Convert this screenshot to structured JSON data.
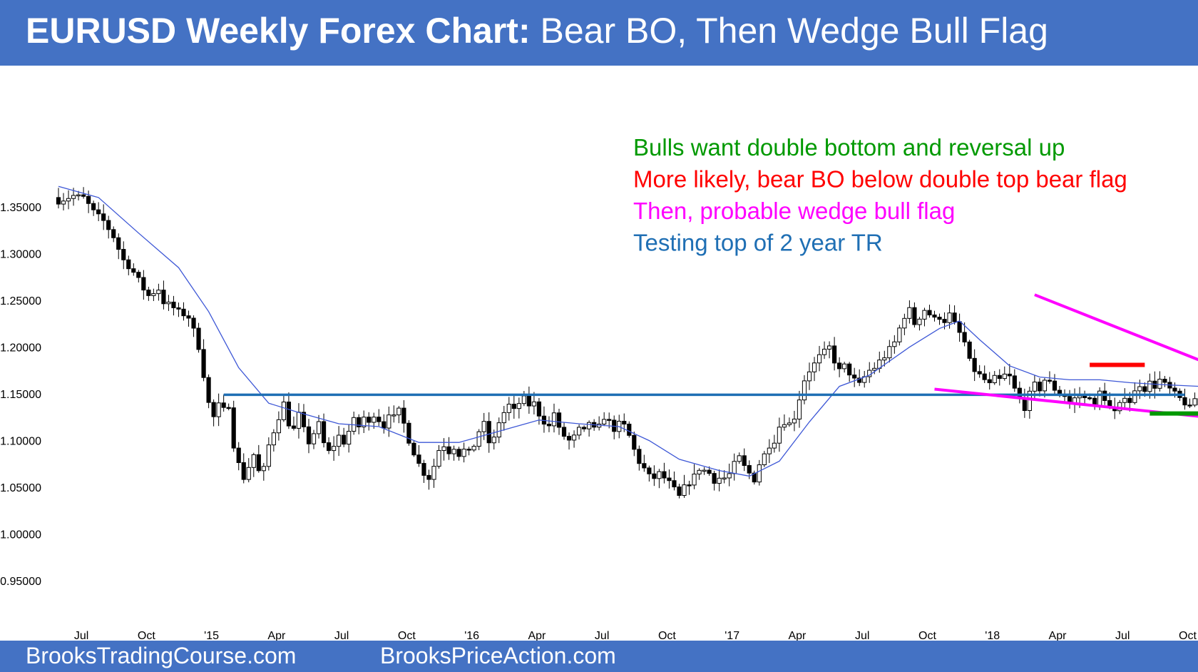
{
  "header": {
    "title_bold": "EURUSD Weekly Forex Chart:",
    "title_rest": " Bear BO, Then Wedge Bull Flag"
  },
  "footer": {
    "left_link": "BrooksTradingCourse.com",
    "right_link": "BrooksPriceAction.com"
  },
  "colors": {
    "banner": "#4472c4",
    "candle": "#000000",
    "moving_average": "#3d57d6",
    "range_line": "#1f6fb4",
    "wedge": "#ff00ff",
    "double_top": "#ff0000",
    "double_bottom": "#009900"
  },
  "chart_data": {
    "type": "candlestick",
    "timeframe": "weekly",
    "ylim": [
      0.93,
      1.43
    ],
    "y_ticks": [
      "1.35000",
      "1.30000",
      "1.25000",
      "1.20000",
      "1.15000",
      "1.10000",
      "1.05000",
      "1.00000",
      "0.95000"
    ],
    "y_tick_values": [
      1.35,
      1.3,
      1.25,
      1.2,
      1.15,
      1.1,
      1.05,
      1.0,
      0.95
    ],
    "x_ticks": [
      "Jul",
      "Oct",
      "'15",
      "Apr",
      "Jul",
      "Oct",
      "'16",
      "Apr",
      "Jul",
      "Oct",
      "'17",
      "Apr",
      "Jul",
      "Oct",
      "'18",
      "Apr",
      "Jul",
      "Oct"
    ],
    "x_tick_weeks": [
      4,
      17,
      30,
      43,
      56,
      69,
      82,
      95,
      108,
      121,
      134,
      147,
      160,
      173,
      186,
      199,
      212,
      225
    ],
    "close_path": [
      [
        0,
        1.356
      ],
      [
        3,
        1.362
      ],
      [
        5,
        1.36
      ],
      [
        7,
        1.345
      ],
      [
        9,
        1.335
      ],
      [
        11,
        1.318
      ],
      [
        12,
        1.305
      ],
      [
        13,
        1.293
      ],
      [
        15,
        1.28
      ],
      [
        16,
        1.272
      ],
      [
        17,
        1.262
      ],
      [
        18,
        1.255
      ],
      [
        20,
        1.262
      ],
      [
        21,
        1.248
      ],
      [
        22,
        1.246
      ],
      [
        24,
        1.238
      ],
      [
        26,
        1.232
      ],
      [
        27,
        1.218
      ],
      [
        28,
        1.2
      ],
      [
        29,
        1.17
      ],
      [
        30,
        1.14
      ],
      [
        31,
        1.125
      ],
      [
        32,
        1.138
      ],
      [
        33,
        1.133
      ],
      [
        34,
        1.138
      ],
      [
        35,
        1.095
      ],
      [
        36,
        1.075
      ],
      [
        37,
        1.06
      ],
      [
        38,
        1.072
      ],
      [
        39,
        1.085
      ],
      [
        40,
        1.067
      ],
      [
        41,
        1.07
      ],
      [
        42,
        1.095
      ],
      [
        43,
        1.11
      ],
      [
        44,
        1.125
      ],
      [
        45,
        1.14
      ],
      [
        46,
        1.118
      ],
      [
        47,
        1.112
      ],
      [
        48,
        1.128
      ],
      [
        49,
        1.112
      ],
      [
        50,
        1.098
      ],
      [
        51,
        1.108
      ],
      [
        52,
        1.118
      ],
      [
        53,
        1.097
      ],
      [
        54,
        1.088
      ],
      [
        55,
        1.095
      ],
      [
        56,
        1.105
      ],
      [
        57,
        1.098
      ],
      [
        58,
        1.11
      ],
      [
        59,
        1.122
      ],
      [
        60,
        1.115
      ],
      [
        61,
        1.125
      ],
      [
        62,
        1.118
      ],
      [
        63,
        1.128
      ],
      [
        64,
        1.122
      ],
      [
        65,
        1.115
      ],
      [
        66,
        1.13
      ],
      [
        67,
        1.125
      ],
      [
        68,
        1.132
      ],
      [
        69,
        1.118
      ],
      [
        70,
        1.1
      ],
      [
        71,
        1.087
      ],
      [
        72,
        1.075
      ],
      [
        73,
        1.065
      ],
      [
        74,
        1.06
      ],
      [
        75,
        1.073
      ],
      [
        76,
        1.09
      ],
      [
        77,
        1.095
      ],
      [
        78,
        1.088
      ],
      [
        79,
        1.093
      ],
      [
        80,
        1.085
      ],
      [
        81,
        1.09
      ],
      [
        82,
        1.087
      ],
      [
        83,
        1.095
      ],
      [
        84,
        1.11
      ],
      [
        85,
        1.118
      ],
      [
        86,
        1.098
      ],
      [
        87,
        1.102
      ],
      [
        88,
        1.12
      ],
      [
        89,
        1.13
      ],
      [
        90,
        1.138
      ],
      [
        91,
        1.132
      ],
      [
        92,
        1.14
      ],
      [
        93,
        1.145
      ],
      [
        94,
        1.138
      ],
      [
        95,
        1.14
      ],
      [
        96,
        1.128
      ],
      [
        97,
        1.12
      ],
      [
        98,
        1.115
      ],
      [
        99,
        1.13
      ],
      [
        100,
        1.112
      ],
      [
        101,
        1.105
      ],
      [
        102,
        1.1
      ],
      [
        103,
        1.104
      ],
      [
        104,
        1.112
      ],
      [
        105,
        1.11
      ],
      [
        106,
        1.12
      ],
      [
        107,
        1.112
      ],
      [
        108,
        1.115
      ],
      [
        109,
        1.125
      ],
      [
        110,
        1.12
      ],
      [
        111,
        1.112
      ],
      [
        112,
        1.118
      ],
      [
        113,
        1.116
      ],
      [
        114,
        1.105
      ],
      [
        115,
        1.09
      ],
      [
        116,
        1.077
      ],
      [
        117,
        1.07
      ],
      [
        118,
        1.062
      ],
      [
        119,
        1.06
      ],
      [
        120,
        1.065
      ],
      [
        121,
        1.06
      ],
      [
        122,
        1.055
      ],
      [
        123,
        1.048
      ],
      [
        124,
        1.04
      ],
      [
        125,
        1.05
      ],
      [
        126,
        1.055
      ],
      [
        127,
        1.062
      ],
      [
        128,
        1.07
      ],
      [
        129,
        1.068
      ],
      [
        130,
        1.065
      ],
      [
        131,
        1.057
      ],
      [
        132,
        1.06
      ],
      [
        133,
        1.06
      ],
      [
        134,
        1.064
      ],
      [
        135,
        1.075
      ],
      [
        136,
        1.082
      ],
      [
        137,
        1.072
      ],
      [
        138,
        1.065
      ],
      [
        139,
        1.058
      ],
      [
        140,
        1.075
      ],
      [
        141,
        1.085
      ],
      [
        142,
        1.095
      ],
      [
        143,
        1.1
      ],
      [
        144,
        1.115
      ],
      [
        145,
        1.12
      ],
      [
        146,
        1.118
      ],
      [
        147,
        1.125
      ],
      [
        148,
        1.145
      ],
      [
        149,
        1.165
      ],
      [
        150,
        1.175
      ],
      [
        151,
        1.182
      ],
      [
        152,
        1.19
      ],
      [
        153,
        1.195
      ],
      [
        154,
        1.2
      ],
      [
        155,
        1.185
      ],
      [
        156,
        1.175
      ],
      [
        157,
        1.18
      ],
      [
        158,
        1.172
      ],
      [
        159,
        1.165
      ],
      [
        160,
        1.16
      ],
      [
        161,
        1.168
      ],
      [
        162,
        1.175
      ],
      [
        163,
        1.178
      ],
      [
        164,
        1.185
      ],
      [
        165,
        1.19
      ],
      [
        166,
        1.198
      ],
      [
        167,
        1.205
      ],
      [
        168,
        1.22
      ],
      [
        169,
        1.233
      ],
      [
        170,
        1.24
      ],
      [
        171,
        1.225
      ],
      [
        172,
        1.232
      ],
      [
        173,
        1.24
      ],
      [
        174,
        1.235
      ],
      [
        175,
        1.23
      ],
      [
        176,
        1.232
      ],
      [
        177,
        1.228
      ],
      [
        178,
        1.235
      ],
      [
        179,
        1.225
      ],
      [
        180,
        1.215
      ],
      [
        181,
        1.205
      ],
      [
        182,
        1.185
      ],
      [
        183,
        1.175
      ],
      [
        184,
        1.17
      ],
      [
        185,
        1.165
      ],
      [
        186,
        1.16
      ],
      [
        187,
        1.167
      ],
      [
        188,
        1.165
      ],
      [
        189,
        1.17
      ],
      [
        190,
        1.168
      ],
      [
        191,
        1.155
      ],
      [
        192,
        1.145
      ],
      [
        193,
        1.135
      ],
      [
        194,
        1.15
      ],
      [
        195,
        1.16
      ],
      [
        196,
        1.155
      ],
      [
        197,
        1.165
      ],
      [
        198,
        1.162
      ],
      [
        199,
        1.155
      ],
      [
        200,
        1.15
      ],
      [
        201,
        1.148
      ],
      [
        202,
        1.14
      ],
      [
        203,
        1.145
      ],
      [
        204,
        1.148
      ],
      [
        205,
        1.145
      ],
      [
        206,
        1.148
      ],
      [
        207,
        1.135
      ],
      [
        208,
        1.152
      ],
      [
        209,
        1.145
      ],
      [
        210,
        1.135
      ],
      [
        211,
        1.13
      ],
      [
        212,
        1.138
      ],
      [
        213,
        1.148
      ],
      [
        214,
        1.142
      ],
      [
        215,
        1.152
      ],
      [
        216,
        1.16
      ],
      [
        217,
        1.155
      ],
      [
        218,
        1.162
      ],
      [
        219,
        1.158
      ],
      [
        220,
        1.165
      ],
      [
        221,
        1.16
      ],
      [
        222,
        1.155
      ],
      [
        223,
        1.15
      ],
      [
        224,
        1.145
      ],
      [
        225,
        1.14
      ],
      [
        226,
        1.135
      ],
      [
        227,
        1.145
      ],
      [
        228,
        1.138
      ],
      [
        229,
        1.132
      ],
      [
        230,
        1.128
      ],
      [
        231,
        1.135
      ],
      [
        232,
        1.14
      ],
      [
        233,
        1.135
      ],
      [
        234,
        1.142
      ],
      [
        235,
        1.135
      ]
    ],
    "moving_average": [
      [
        0,
        1.372
      ],
      [
        8,
        1.36
      ],
      [
        16,
        1.322
      ],
      [
        24,
        1.285
      ],
      [
        30,
        1.238
      ],
      [
        36,
        1.178
      ],
      [
        42,
        1.14
      ],
      [
        48,
        1.13
      ],
      [
        56,
        1.118
      ],
      [
        64,
        1.115
      ],
      [
        72,
        1.098
      ],
      [
        80,
        1.098
      ],
      [
        88,
        1.11
      ],
      [
        96,
        1.122
      ],
      [
        104,
        1.118
      ],
      [
        112,
        1.115
      ],
      [
        118,
        1.1
      ],
      [
        124,
        1.08
      ],
      [
        132,
        1.068
      ],
      [
        138,
        1.062
      ],
      [
        144,
        1.078
      ],
      [
        150,
        1.12
      ],
      [
        156,
        1.158
      ],
      [
        162,
        1.17
      ],
      [
        170,
        1.2
      ],
      [
        176,
        1.22
      ],
      [
        180,
        1.228
      ],
      [
        184,
        1.208
      ],
      [
        190,
        1.18
      ],
      [
        196,
        1.168
      ],
      [
        202,
        1.165
      ],
      [
        208,
        1.165
      ],
      [
        214,
        1.162
      ],
      [
        220,
        1.16
      ],
      [
        228,
        1.158
      ],
      [
        235,
        1.148
      ]
    ],
    "lines": [
      {
        "name": "range-top",
        "from": [
          33,
          1.149
        ],
        "to": [
          225,
          1.149
        ]
      },
      {
        "name": "wedge-upper",
        "from": [
          195,
          1.256
        ],
        "to": [
          235,
          1.171
        ]
      },
      {
        "name": "wedge-lower",
        "from": [
          175,
          1.155
        ],
        "to": [
          235,
          1.122
        ]
      },
      {
        "name": "double-top",
        "from": [
          206,
          1.181
        ],
        "to": [
          217,
          1.181
        ]
      },
      {
        "name": "double-bottom",
        "from": [
          218,
          1.129
        ],
        "to": [
          233,
          1.129
        ]
      }
    ],
    "annotations": [
      {
        "text": "Bulls want double bottom and reversal up",
        "color": "#009900"
      },
      {
        "text": "More likely, bear BO below double top bear flag",
        "color": "#ff0000"
      },
      {
        "text": "Then, probable wedge bull flag",
        "color": "#ff00ff"
      },
      {
        "text": "Testing top of 2 year TR",
        "color": "#1f6fb4"
      }
    ]
  }
}
